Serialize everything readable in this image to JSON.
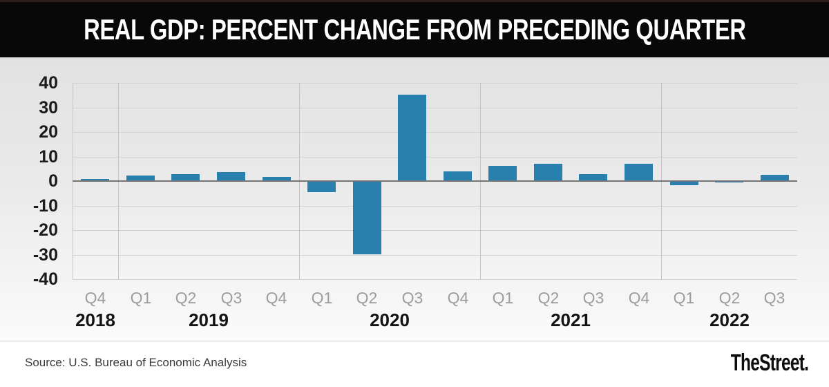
{
  "header": {
    "title": "REAL GDP: PERCENT CHANGE FROM PRECEDING QUARTER"
  },
  "chart_data": {
    "type": "bar",
    "title": "REAL GDP: PERCENT CHANGE FROM PRECEDING QUARTER",
    "xlabel": "",
    "ylabel": "",
    "ylim": [
      -40,
      40
    ],
    "ytick_step": 10,
    "yticks": [
      40,
      30,
      20,
      10,
      0,
      -10,
      -20,
      -30,
      -40
    ],
    "grid": true,
    "legend": "none",
    "bar_color": "#2980ac",
    "categories": [
      "Q4",
      "Q1",
      "Q2",
      "Q3",
      "Q4",
      "Q1",
      "Q2",
      "Q3",
      "Q4",
      "Q1",
      "Q2",
      "Q3",
      "Q4",
      "Q1",
      "Q2",
      "Q3"
    ],
    "values": [
      0.9,
      2.2,
      2.7,
      3.6,
      1.8,
      -4.6,
      -29.9,
      35.3,
      3.9,
      6.3,
      7.0,
      2.7,
      7.0,
      -1.6,
      -0.6,
      2.6
    ],
    "year_groups": [
      {
        "year": "2018",
        "count": 1
      },
      {
        "year": "2019",
        "count": 4
      },
      {
        "year": "2020",
        "count": 4
      },
      {
        "year": "2021",
        "count": 4
      },
      {
        "year": "2022",
        "count": 3
      }
    ]
  },
  "footer": {
    "source": "Source: U.S. Bureau of Economic Analysis",
    "brand": "TheStreet."
  }
}
